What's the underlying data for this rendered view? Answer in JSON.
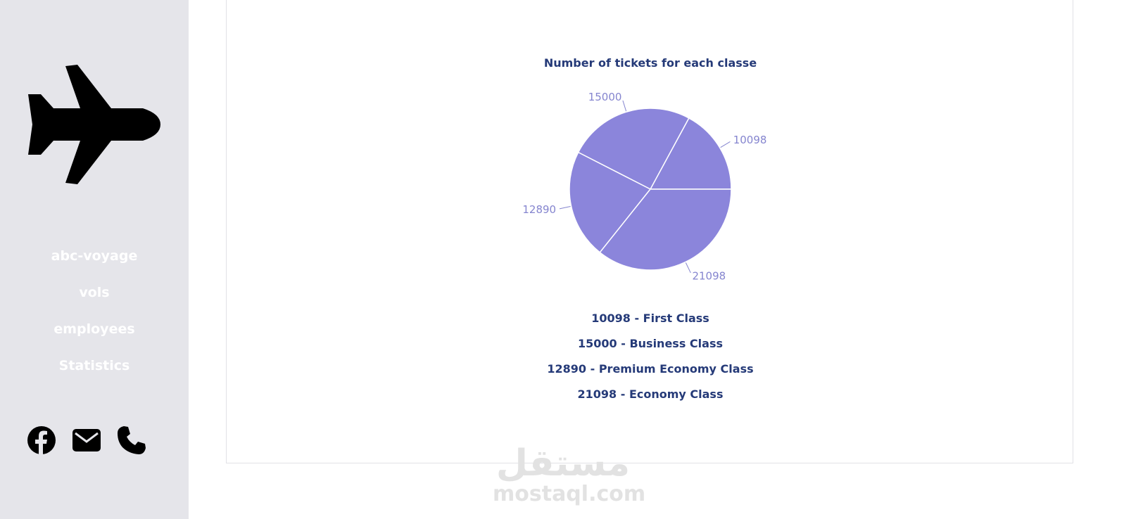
{
  "sidebar": {
    "logo_icon": "airplane-icon",
    "nav_items": [
      {
        "label": "abc-voyage"
      },
      {
        "label": "vols"
      },
      {
        "label": "employees"
      },
      {
        "label": "Statistics"
      }
    ],
    "social_icons": [
      "facebook-icon",
      "envelope-icon",
      "phone-icon"
    ],
    "background_color": "#e5e5ea"
  },
  "legend_items": [
    {
      "label": "10098 - First Class"
    },
    {
      "label": "15000 - Business Class"
    },
    {
      "label": "12890 - Premium Economy Class"
    },
    {
      "label": "21098 - Economy Class"
    }
  ],
  "watermark": {
    "arabic": "مستقل",
    "latin": "mostaql.com"
  },
  "chart_data": {
    "type": "pie",
    "title": "Number of tickets for each classe",
    "categories": [
      "First Class",
      "Business Class",
      "Premium Economy Class",
      "Economy Class"
    ],
    "values": [
      10098,
      15000,
      12890,
      21098
    ],
    "value_labels": [
      "10098",
      "15000",
      "12890",
      "21098"
    ],
    "slice_color": "#8b85db",
    "label_color": "#8585cf",
    "title_color": "#253a78",
    "start_direction": "east",
    "order": "counterclockwise"
  }
}
